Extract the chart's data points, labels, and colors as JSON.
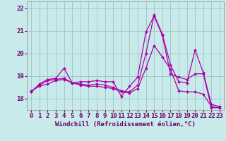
{
  "background_color": "#c8eaea",
  "line_color": "#aa00aa",
  "grid_color": "#99bbbb",
  "xlabel": "Windchill (Refroidissement éolien,°C)",
  "xlabel_fontsize": 6.5,
  "tick_fontsize": 6.5,
  "xlim": [
    -0.5,
    23.5
  ],
  "ylim": [
    17.5,
    22.3
  ],
  "yticks": [
    18,
    19,
    20,
    21,
    22
  ],
  "xticks": [
    0,
    1,
    2,
    3,
    4,
    5,
    6,
    7,
    8,
    9,
    10,
    11,
    12,
    13,
    14,
    15,
    16,
    17,
    18,
    19,
    20,
    21,
    22,
    23
  ],
  "series": [
    [
      18.3,
      18.65,
      18.85,
      18.9,
      19.35,
      18.7,
      18.75,
      18.75,
      18.8,
      18.75,
      18.75,
      18.1,
      18.55,
      18.95,
      20.95,
      21.65,
      20.8,
      19.1,
      18.95,
      18.85,
      19.1,
      19.1,
      17.6,
      17.6
    ],
    [
      18.3,
      18.6,
      18.8,
      18.85,
      18.9,
      18.7,
      18.65,
      18.6,
      18.65,
      18.6,
      18.5,
      18.35,
      18.3,
      18.6,
      20.0,
      21.7,
      20.85,
      19.5,
      18.75,
      18.7,
      20.15,
      19.15,
      17.75,
      17.65
    ],
    [
      18.35,
      18.55,
      18.65,
      18.8,
      18.85,
      18.7,
      18.6,
      18.55,
      18.55,
      18.5,
      18.45,
      18.3,
      18.25,
      18.45,
      19.35,
      20.35,
      19.85,
      19.3,
      18.35,
      18.3,
      18.3,
      18.2,
      17.65,
      17.6
    ]
  ]
}
